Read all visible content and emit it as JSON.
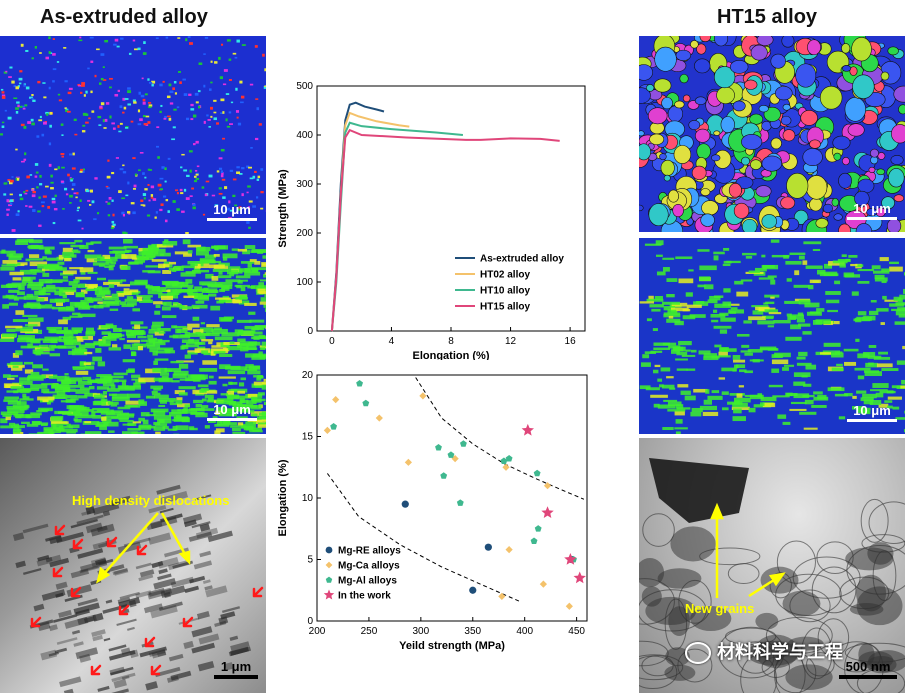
{
  "titles": {
    "left": "As-extruded alloy",
    "right": "HT15 alloy"
  },
  "left_panels": {
    "ebsd_scale": "10 μm",
    "kam_scale": "10 μm",
    "tem_scale": "1 μm",
    "tem_annotation": "High density dislocations"
  },
  "right_panels": {
    "ebsd_scale": "10 μm",
    "kam_scale": "10 μm",
    "tem_scale": "500 nm",
    "tem_annotation": "New grains",
    "watermark": "材料科学与工程"
  },
  "colors": {
    "as_extruded": "#1f4e79",
    "ht02": "#f4c26b",
    "ht10": "#3fb88f",
    "ht15": "#e0467a",
    "mg_re": "#1f4e79",
    "mg_ca": "#f4c26b",
    "mg_al": "#3fb88f",
    "this_work": "#e0467a"
  },
  "chart_data": [
    {
      "type": "line",
      "xlabel": "Elongation (%)",
      "ylabel": "Strength (MPa)",
      "xlim": [
        -1,
        17
      ],
      "ylim": [
        0,
        500
      ],
      "xticks": [
        0,
        4,
        8,
        12,
        16
      ],
      "yticks": [
        0,
        100,
        200,
        300,
        400,
        500
      ],
      "legend_position": "bottom-right",
      "series": [
        {
          "name": "As-extruded alloy",
          "color_key": "as_extruded",
          "x": [
            0,
            0.3,
            0.6,
            0.9,
            1.2,
            1.6,
            2.2,
            3.0,
            3.5
          ],
          "y": [
            0,
            120,
            300,
            430,
            462,
            466,
            458,
            452,
            448
          ]
        },
        {
          "name": "HT02 alloy",
          "color_key": "ht02",
          "x": [
            0,
            0.3,
            0.6,
            0.9,
            1.2,
            1.8,
            3.0,
            4.5,
            5.2
          ],
          "y": [
            0,
            110,
            280,
            420,
            445,
            438,
            428,
            420,
            417
          ]
        },
        {
          "name": "HT10 alloy",
          "color_key": "ht10",
          "x": [
            0,
            0.3,
            0.6,
            0.9,
            1.2,
            2.0,
            4.0,
            7.0,
            8.8
          ],
          "y": [
            0,
            100,
            260,
            405,
            425,
            418,
            412,
            405,
            400
          ]
        },
        {
          "name": "HT15 alloy",
          "color_key": "ht15",
          "x": [
            0,
            0.3,
            0.6,
            0.9,
            1.2,
            2.0,
            5.0,
            9.0,
            10.0,
            12.0,
            14.0,
            15.3
          ],
          "y": [
            0,
            110,
            280,
            395,
            410,
            400,
            395,
            390,
            390,
            393,
            392,
            388
          ]
        }
      ]
    },
    {
      "type": "scatter",
      "xlabel": "Yeild strength (MPa)",
      "ylabel": "Elongation (%)",
      "xlim": [
        200,
        460
      ],
      "ylim": [
        0,
        20
      ],
      "xticks": [
        200,
        250,
        300,
        350,
        400,
        450
      ],
      "yticks": [
        0,
        5,
        10,
        15,
        20
      ],
      "legend_position": "bottom-left",
      "series": [
        {
          "name": "Mg-RE alloys",
          "marker": "circle",
          "color_key": "mg_re",
          "x": [
            285,
            365,
            350,
            445
          ],
          "y": [
            9.5,
            6.0,
            2.5,
            5.0
          ]
        },
        {
          "name": "Mg-Ca alloys",
          "marker": "diamond",
          "color_key": "mg_ca",
          "x": [
            210,
            218,
            260,
            288,
            302,
            333,
            382,
            385,
            378,
            422,
            418,
            443
          ],
          "y": [
            15.5,
            18.0,
            16.5,
            12.9,
            18.3,
            13.2,
            12.5,
            5.8,
            2.0,
            11.0,
            3.0,
            1.2
          ]
        },
        {
          "name": "Mg-Al alloys",
          "marker": "pentagon",
          "color_key": "mg_al",
          "x": [
            216,
            241,
            247,
            317,
            322,
            329,
            338,
            341,
            380,
            385,
            412,
            409,
            413,
            447
          ],
          "y": [
            15.8,
            19.3,
            17.7,
            14.1,
            11.8,
            13.5,
            9.6,
            14.4,
            13.0,
            13.2,
            12.0,
            6.5,
            7.5,
            5.0
          ]
        },
        {
          "name": "In the work",
          "marker": "star",
          "color_key": "this_work",
          "x": [
            403,
            422,
            444,
            453
          ],
          "y": [
            15.5,
            8.8,
            5.0,
            3.5
          ]
        }
      ],
      "guides": [
        {
          "x": [
            210,
            240,
            280,
            320,
            360,
            395
          ],
          "y": [
            12,
            8.5,
            6.2,
            4.4,
            2.9,
            1.6
          ]
        },
        {
          "x": [
            295,
            320,
            350,
            380,
            410,
            440,
            457
          ],
          "y": [
            19.8,
            16.5,
            14.4,
            12.8,
            11.6,
            10.5,
            9.9
          ]
        }
      ]
    }
  ]
}
